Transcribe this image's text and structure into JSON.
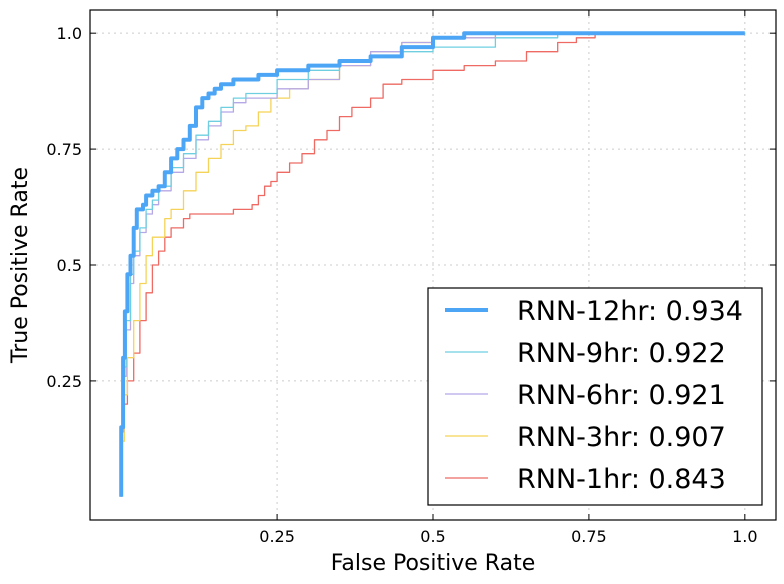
{
  "chart_data": {
    "type": "line",
    "title": "",
    "xlabel": "False Positive Rate",
    "ylabel": "True Positive Rate",
    "xlim": [
      -0.05,
      1.05
    ],
    "ylim": [
      -0.05,
      1.05
    ],
    "x_ticks": [
      {
        "value": 0.25,
        "label": "0.25"
      },
      {
        "value": 0.5,
        "label": "0.5"
      },
      {
        "value": 0.75,
        "label": "0.75"
      },
      {
        "value": 1.0,
        "label": "1.0"
      }
    ],
    "y_ticks": [
      {
        "value": 0.25,
        "label": "0.25"
      },
      {
        "value": 0.5,
        "label": "0.5"
      },
      {
        "value": 0.75,
        "label": "0.75"
      },
      {
        "value": 1.0,
        "label": "1.0"
      }
    ],
    "grid": true,
    "legend_position": "lower-right",
    "series": [
      {
        "name": "RNN-12hr: 0.934",
        "color": "#4da6f5",
        "emphasis": "thick",
        "points": [
          [
            0.0,
            0.0
          ],
          [
            0.0,
            0.15
          ],
          [
            0.003,
            0.3
          ],
          [
            0.006,
            0.4
          ],
          [
            0.01,
            0.48
          ],
          [
            0.015,
            0.52
          ],
          [
            0.02,
            0.58
          ],
          [
            0.025,
            0.62
          ],
          [
            0.035,
            0.63
          ],
          [
            0.04,
            0.65
          ],
          [
            0.05,
            0.66
          ],
          [
            0.06,
            0.67
          ],
          [
            0.07,
            0.7
          ],
          [
            0.08,
            0.73
          ],
          [
            0.09,
            0.75
          ],
          [
            0.1,
            0.77
          ],
          [
            0.11,
            0.8
          ],
          [
            0.12,
            0.84
          ],
          [
            0.13,
            0.86
          ],
          [
            0.14,
            0.87
          ],
          [
            0.15,
            0.88
          ],
          [
            0.16,
            0.89
          ],
          [
            0.18,
            0.9
          ],
          [
            0.22,
            0.91
          ],
          [
            0.25,
            0.92
          ],
          [
            0.3,
            0.93
          ],
          [
            0.35,
            0.94
          ],
          [
            0.4,
            0.95
          ],
          [
            0.45,
            0.97
          ],
          [
            0.5,
            0.99
          ],
          [
            0.55,
            1.0
          ],
          [
            1.0,
            1.0
          ]
        ]
      },
      {
        "name": "RNN-9hr: 0.922",
        "color": "#6fcfe0",
        "emphasis": "thin",
        "points": [
          [
            0.0,
            0.0
          ],
          [
            0.0,
            0.15
          ],
          [
            0.004,
            0.28
          ],
          [
            0.008,
            0.38
          ],
          [
            0.015,
            0.48
          ],
          [
            0.02,
            0.53
          ],
          [
            0.03,
            0.58
          ],
          [
            0.04,
            0.62
          ],
          [
            0.05,
            0.64
          ],
          [
            0.06,
            0.67
          ],
          [
            0.08,
            0.71
          ],
          [
            0.1,
            0.74
          ],
          [
            0.12,
            0.78
          ],
          [
            0.14,
            0.81
          ],
          [
            0.16,
            0.84
          ],
          [
            0.18,
            0.86
          ],
          [
            0.2,
            0.87
          ],
          [
            0.25,
            0.9
          ],
          [
            0.3,
            0.92
          ],
          [
            0.35,
            0.94
          ],
          [
            0.4,
            0.95
          ],
          [
            0.45,
            0.96
          ],
          [
            0.5,
            0.97
          ],
          [
            0.6,
            0.99
          ],
          [
            0.7,
            1.0
          ],
          [
            1.0,
            1.0
          ]
        ]
      },
      {
        "name": "RNN-6hr: 0.921",
        "color": "#b5a8e6",
        "emphasis": "thin",
        "points": [
          [
            0.0,
            0.0
          ],
          [
            0.0,
            0.14
          ],
          [
            0.004,
            0.26
          ],
          [
            0.008,
            0.36
          ],
          [
            0.015,
            0.46
          ],
          [
            0.02,
            0.52
          ],
          [
            0.03,
            0.57
          ],
          [
            0.04,
            0.61
          ],
          [
            0.05,
            0.63
          ],
          [
            0.06,
            0.66
          ],
          [
            0.08,
            0.7
          ],
          [
            0.1,
            0.73
          ],
          [
            0.12,
            0.77
          ],
          [
            0.14,
            0.8
          ],
          [
            0.16,
            0.83
          ],
          [
            0.18,
            0.85
          ],
          [
            0.2,
            0.86
          ],
          [
            0.25,
            0.88
          ],
          [
            0.3,
            0.9
          ],
          [
            0.35,
            0.93
          ],
          [
            0.4,
            0.96
          ],
          [
            0.45,
            0.98
          ],
          [
            0.5,
            0.99
          ],
          [
            0.6,
            1.0
          ],
          [
            1.0,
            1.0
          ]
        ]
      },
      {
        "name": "RNN-3hr: 0.907",
        "color": "#f5d358",
        "emphasis": "thin",
        "points": [
          [
            0.0,
            0.0
          ],
          [
            0.0,
            0.12
          ],
          [
            0.005,
            0.22
          ],
          [
            0.01,
            0.3
          ],
          [
            0.02,
            0.38
          ],
          [
            0.03,
            0.46
          ],
          [
            0.04,
            0.52
          ],
          [
            0.05,
            0.56
          ],
          [
            0.07,
            0.6
          ],
          [
            0.08,
            0.62
          ],
          [
            0.1,
            0.66
          ],
          [
            0.12,
            0.7
          ],
          [
            0.14,
            0.73
          ],
          [
            0.16,
            0.76
          ],
          [
            0.18,
            0.79
          ],
          [
            0.2,
            0.8
          ],
          [
            0.22,
            0.83
          ],
          [
            0.24,
            0.86
          ],
          [
            0.27,
            0.88
          ],
          [
            0.3,
            0.9
          ],
          [
            0.35,
            0.93
          ],
          [
            0.4,
            0.96
          ],
          [
            0.45,
            0.98
          ],
          [
            0.5,
            0.99
          ],
          [
            0.6,
            1.0
          ],
          [
            1.0,
            1.0
          ]
        ]
      },
      {
        "name": "RNN-1hr: 0.843",
        "color": "#ee6a63",
        "emphasis": "thin",
        "points": [
          [
            0.0,
            0.0
          ],
          [
            0.0,
            0.15
          ],
          [
            0.005,
            0.2
          ],
          [
            0.01,
            0.25
          ],
          [
            0.02,
            0.31
          ],
          [
            0.03,
            0.38
          ],
          [
            0.04,
            0.44
          ],
          [
            0.05,
            0.5
          ],
          [
            0.06,
            0.53
          ],
          [
            0.07,
            0.56
          ],
          [
            0.08,
            0.58
          ],
          [
            0.1,
            0.6
          ],
          [
            0.11,
            0.61
          ],
          [
            0.15,
            0.61
          ],
          [
            0.18,
            0.62
          ],
          [
            0.21,
            0.63
          ],
          [
            0.22,
            0.65
          ],
          [
            0.23,
            0.67
          ],
          [
            0.24,
            0.68
          ],
          [
            0.25,
            0.7
          ],
          [
            0.27,
            0.72
          ],
          [
            0.29,
            0.74
          ],
          [
            0.31,
            0.77
          ],
          [
            0.33,
            0.79
          ],
          [
            0.35,
            0.82
          ],
          [
            0.37,
            0.84
          ],
          [
            0.4,
            0.86
          ],
          [
            0.42,
            0.89
          ],
          [
            0.45,
            0.9
          ],
          [
            0.5,
            0.92
          ],
          [
            0.55,
            0.93
          ],
          [
            0.6,
            0.94
          ],
          [
            0.65,
            0.96
          ],
          [
            0.7,
            0.98
          ],
          [
            0.73,
            0.99
          ],
          [
            0.76,
            1.0
          ],
          [
            1.0,
            1.0
          ]
        ]
      }
    ]
  }
}
